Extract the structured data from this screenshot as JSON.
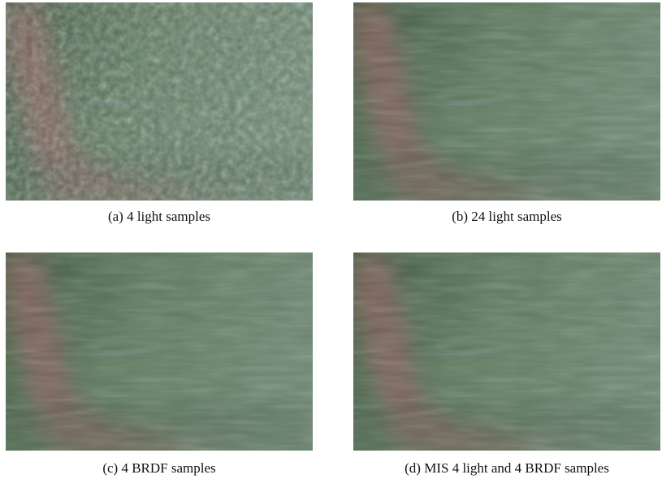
{
  "figures": [
    {
      "caption": "(a) 4 light samples"
    },
    {
      "caption": "(b) 24 light samples"
    },
    {
      "caption": "(c) 4 BRDF samples"
    },
    {
      "caption": "(d) MIS 4 light and 4 BRDF samples"
    }
  ]
}
